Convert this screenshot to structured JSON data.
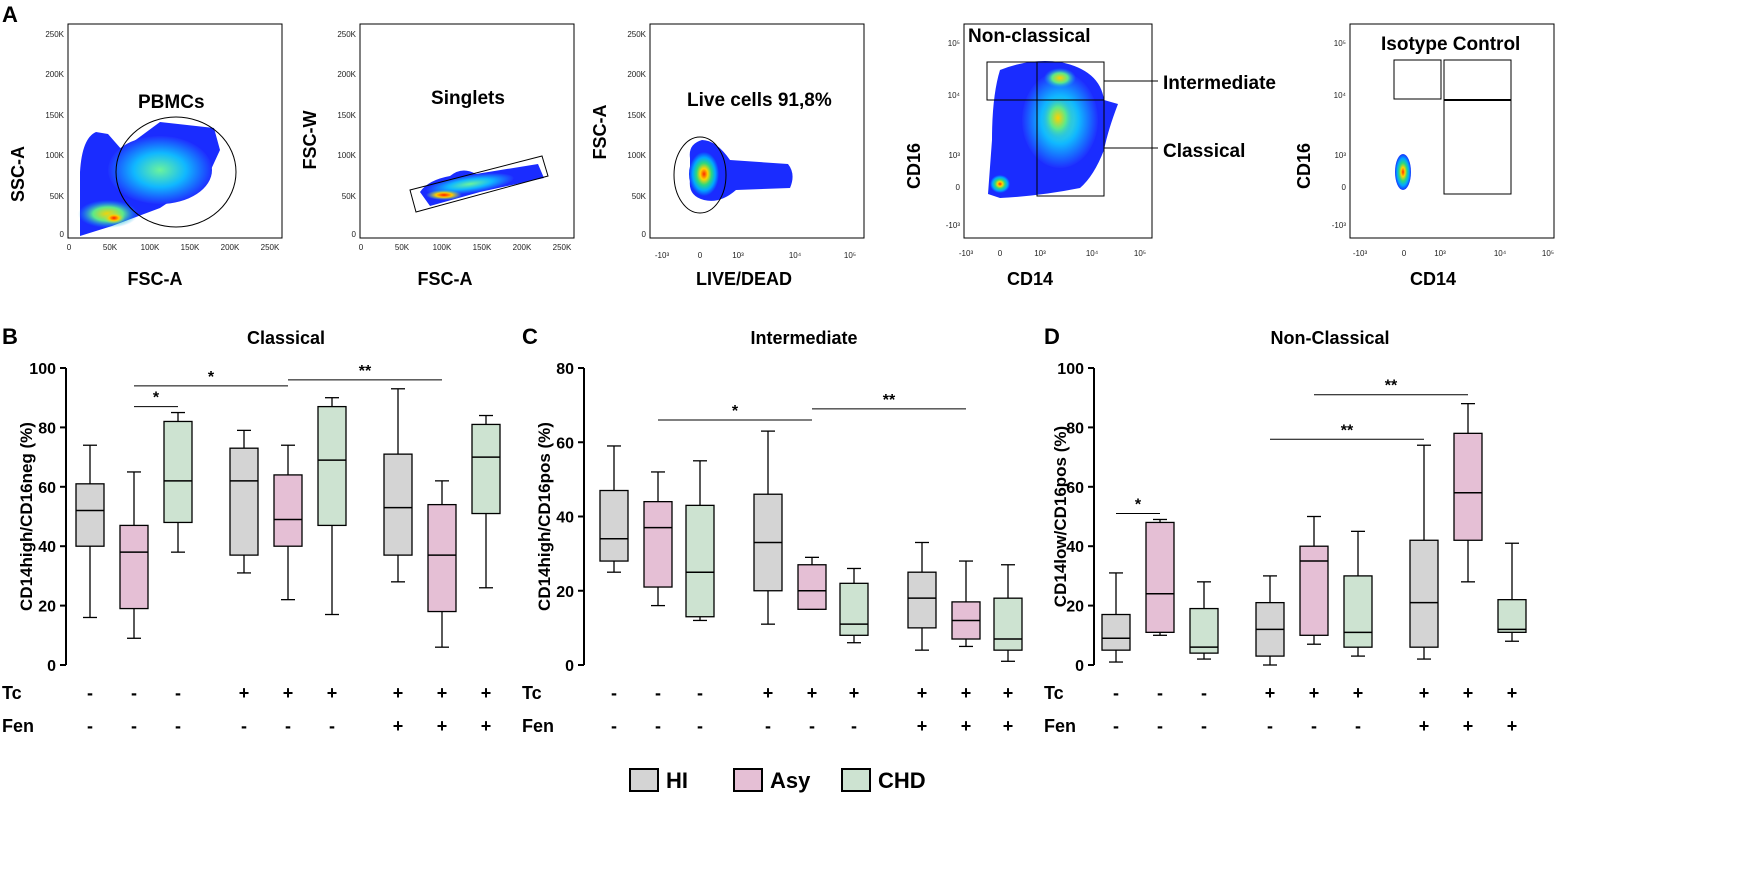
{
  "panel_a": {
    "letter": "A",
    "plots": [
      {
        "id": "a1",
        "ylabel": "SSC-A",
        "xlabel": "FSC-A",
        "gate_label": "PBMCs",
        "y_ticks": [
          "250K",
          "200K",
          "150K",
          "100K",
          "50K",
          "0"
        ],
        "x_ticks": [
          "0",
          "50K",
          "100K",
          "150K",
          "200K",
          "250K"
        ]
      },
      {
        "id": "a2",
        "ylabel": "FSC-W",
        "xlabel": "FSC-A",
        "gate_label": "Singlets",
        "y_ticks": [
          "250K",
          "200K",
          "150K",
          "100K",
          "50K",
          "0"
        ],
        "x_ticks": [
          "0",
          "50K",
          "100K",
          "150K",
          "200K",
          "250K"
        ]
      },
      {
        "id": "a3",
        "ylabel": "FSC-A",
        "xlabel": "LIVE/DEAD",
        "gate_label": "Live cells 91,8%",
        "y_ticks": [
          "250K",
          "200K",
          "150K",
          "100K",
          "50K",
          "0"
        ],
        "x_ticks": [
          "-10³",
          "0",
          "10³",
          "10⁴",
          "10⁵"
        ]
      },
      {
        "id": "a4",
        "ylabel": "CD16",
        "xlabel": "CD14",
        "gate_label": "Non-classical",
        "side_labels": [
          "Intermediate",
          "Classical"
        ],
        "y_ticks": [
          "10⁵",
          "10⁴",
          "10³",
          "0",
          "-10³"
        ],
        "x_ticks": [
          "-10³",
          "0",
          "10³",
          "10⁴",
          "10⁵"
        ]
      },
      {
        "id": "a5",
        "ylabel": "CD16",
        "xlabel": "CD14",
        "gate_label": "Isotype Control",
        "y_ticks": [
          "10⁵",
          "10⁴",
          "10³",
          "0",
          "-10³"
        ],
        "x_ticks": [
          "-10³",
          "0",
          "10³",
          "10⁴",
          "10⁵"
        ]
      }
    ]
  },
  "conditions": {
    "tc_label": "Tc",
    "fen_label": "Fen",
    "tc": [
      "-",
      "-",
      "-",
      "+",
      "+",
      "+",
      "+",
      "+",
      "+"
    ],
    "fen": [
      "-",
      "-",
      "-",
      "-",
      "-",
      "-",
      "+",
      "+",
      "+"
    ]
  },
  "legend": {
    "items": [
      {
        "label": "HI",
        "color": "#d4d4d4"
      },
      {
        "label": "Asy",
        "color": "#e5bfd5"
      },
      {
        "label": "CHD",
        "color": "#cde3d1"
      }
    ]
  },
  "chart_data": [
    {
      "panel": "B",
      "type": "box",
      "title": "Classical",
      "ylabel": "CD14high/CD16neg (%)",
      "ylim": [
        0,
        100
      ],
      "yticks": [
        "0",
        "20",
        "40",
        "60",
        "80",
        "100"
      ],
      "groups": [
        "HI",
        "Asy",
        "CHD",
        "HI",
        "Asy",
        "CHD",
        "HI",
        "Asy",
        "CHD"
      ],
      "boxes": [
        {
          "min": 16,
          "q1": 40,
          "median": 52,
          "q3": 61,
          "max": 74
        },
        {
          "min": 9,
          "q1": 19,
          "median": 38,
          "q3": 47,
          "max": 65
        },
        {
          "min": 38,
          "q1": 48,
          "median": 62,
          "q3": 82,
          "max": 85
        },
        {
          "min": 31,
          "q1": 37,
          "median": 62,
          "q3": 73,
          "max": 79
        },
        {
          "min": 22,
          "q1": 40,
          "median": 49,
          "q3": 64,
          "max": 74
        },
        {
          "min": 17,
          "q1": 47,
          "median": 69,
          "q3": 87,
          "max": 90
        },
        {
          "min": 28,
          "q1": 37,
          "median": 53,
          "q3": 71,
          "max": 93
        },
        {
          "min": 6,
          "q1": 18,
          "median": 37,
          "q3": 54,
          "max": 62
        },
        {
          "min": 26,
          "q1": 51,
          "median": 70,
          "q3": 81,
          "max": 84
        }
      ],
      "significance": [
        {
          "from": 1,
          "to": 2,
          "y": 87,
          "label": "*"
        },
        {
          "from": 1,
          "to": 4,
          "y": 94,
          "label": "*"
        },
        {
          "from": 4,
          "to": 7,
          "y": 96,
          "label": "**"
        }
      ]
    },
    {
      "panel": "C",
      "type": "box",
      "title": "Intermediate",
      "ylabel": "CD14high/CD16pos (%)",
      "ylim": [
        0,
        80
      ],
      "yticks": [
        "0",
        "20",
        "40",
        "60",
        "80"
      ],
      "groups": [
        "HI",
        "Asy",
        "CHD",
        "HI",
        "Asy",
        "CHD",
        "HI",
        "Asy",
        "CHD"
      ],
      "boxes": [
        {
          "min": 25,
          "q1": 28,
          "median": 34,
          "q3": 47,
          "max": 59
        },
        {
          "min": 16,
          "q1": 21,
          "median": 37,
          "q3": 44,
          "max": 52
        },
        {
          "min": 12,
          "q1": 13,
          "median": 25,
          "q3": 43,
          "max": 55
        },
        {
          "min": 11,
          "q1": 20,
          "median": 33,
          "q3": 46,
          "max": 63
        },
        {
          "min": 15,
          "q1": 15,
          "median": 20,
          "q3": 27,
          "max": 29
        },
        {
          "min": 6,
          "q1": 8,
          "median": 11,
          "q3": 22,
          "max": 26
        },
        {
          "min": 4,
          "q1": 10,
          "median": 18,
          "q3": 25,
          "max": 33
        },
        {
          "min": 5,
          "q1": 7,
          "median": 12,
          "q3": 17,
          "max": 28
        },
        {
          "min": 1,
          "q1": 4,
          "median": 7,
          "q3": 18,
          "max": 27
        }
      ],
      "significance": [
        {
          "from": 1,
          "to": 4,
          "y": 66,
          "label": "*"
        },
        {
          "from": 4,
          "to": 7,
          "y": 69,
          "label": "**"
        }
      ]
    },
    {
      "panel": "D",
      "type": "box",
      "title": "Non-Classical",
      "ylabel": "CD14low/CD16pos (%)",
      "ylim": [
        0,
        100
      ],
      "yticks": [
        "0",
        "20",
        "40",
        "60",
        "80",
        "100"
      ],
      "groups": [
        "HI",
        "Asy",
        "CHD",
        "HI",
        "Asy",
        "CHD",
        "HI",
        "Asy",
        "CHD"
      ],
      "boxes": [
        {
          "min": 1,
          "q1": 5,
          "median": 9,
          "q3": 17,
          "max": 31
        },
        {
          "min": 10,
          "q1": 11,
          "median": 24,
          "q3": 48,
          "max": 49
        },
        {
          "min": 2,
          "q1": 4,
          "median": 6,
          "q3": 19,
          "max": 28
        },
        {
          "min": 0,
          "q1": 3,
          "median": 12,
          "q3": 21,
          "max": 30
        },
        {
          "min": 7,
          "q1": 10,
          "median": 35,
          "q3": 40,
          "max": 50
        },
        {
          "min": 3,
          "q1": 6,
          "median": 11,
          "q3": 30,
          "max": 45
        },
        {
          "min": 2,
          "q1": 6,
          "median": 21,
          "q3": 42,
          "max": 74
        },
        {
          "min": 28,
          "q1": 42,
          "median": 58,
          "q3": 78,
          "max": 88
        },
        {
          "min": 8,
          "q1": 11,
          "median": 12,
          "q3": 22,
          "max": 41
        }
      ],
      "significance": [
        {
          "from": 0,
          "to": 1,
          "y": 51,
          "label": "*"
        },
        {
          "from": 3,
          "to": 6,
          "y": 76,
          "label": "**"
        },
        {
          "from": 4,
          "to": 7,
          "y": 91,
          "label": "**"
        }
      ]
    }
  ]
}
